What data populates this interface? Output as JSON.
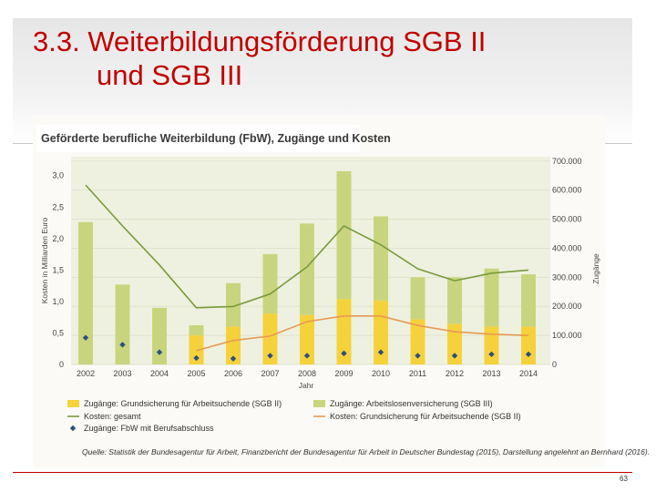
{
  "slide": {
    "title_line1": "3.3. Weiterbildungsförderung SGB II",
    "title_line2": "und SGB III",
    "page_number": "63"
  },
  "chart_data": {
    "type": "bar",
    "title": "Geförderte berufliche Weiterbildung (FbW), Zugänge und Kosten",
    "source": "Quelle: Statistik der Bundesagentur für Arbeit, Finanzbericht der Bundesagentur für Arbeit in Deutscher Bundestag (2015), Darstellung angelehnt an Bernhard (2016).",
    "xlabel": "Jahr",
    "ylabel_left": "Kosten in Milliarden Euro",
    "ylabel_right": "Zugänge",
    "categories": [
      "2002",
      "2003",
      "2004",
      "2005",
      "2006",
      "2007",
      "2008",
      "2009",
      "2010",
      "2011",
      "2012",
      "2013",
      "2014"
    ],
    "left_axis": {
      "ticks": [
        0,
        0.5,
        1.0,
        1.5,
        2.0,
        2.5,
        3.0
      ],
      "tick_labels": [
        "0",
        "0,5",
        "1,0",
        "1,5",
        "2,0",
        "2,5",
        "3,0"
      ],
      "range": [
        0,
        3.3
      ]
    },
    "right_axis": {
      "ticks": [
        0,
        100000,
        200000,
        300000,
        400000,
        500000,
        600000,
        700000
      ],
      "tick_labels": [
        "0",
        "100.000",
        "200.000",
        "300.000",
        "400.000",
        "500.000",
        "600.000",
        "700.000"
      ],
      "range": [
        0,
        715000
      ]
    },
    "series": [
      {
        "name": "Zugänge: Grundsicherung für Arbeitsuchende (SGB II)",
        "kind": "bar-stacked",
        "axis": "right",
        "color": "#f5d23c",
        "values": [
          0,
          0,
          0,
          100000,
          130000,
          175000,
          170000,
          225000,
          220000,
          155000,
          140000,
          130000,
          130000
        ]
      },
      {
        "name": "Zugänge: Arbeitslosenversicherung (SGB III)",
        "kind": "bar-stacked",
        "axis": "right",
        "color": "#c9d57e",
        "values": [
          490000,
          275000,
          195000,
          35000,
          150000,
          205000,
          315000,
          440000,
          290000,
          145000,
          160000,
          200000,
          180000
        ]
      },
      {
        "name": "Kosten: gesamt",
        "kind": "line",
        "axis": "left",
        "color": "#7b9a3a",
        "values": [
          2.85,
          2.2,
          1.58,
          0.9,
          0.92,
          1.12,
          1.55,
          2.2,
          1.9,
          1.52,
          1.33,
          1.45,
          1.5
        ]
      },
      {
        "name": "Kosten: Grundsicherung für Arbeitsuchende (SGB II)",
        "kind": "line",
        "axis": "left",
        "color": "#e79a54",
        "values": [
          null,
          null,
          null,
          0.22,
          0.38,
          0.45,
          0.68,
          0.77,
          0.77,
          0.62,
          0.52,
          0.48,
          0.46
        ]
      },
      {
        "name": "Zugänge: FbW mit Berufsabschluss",
        "kind": "point",
        "axis": "right",
        "color": "#2d4f7c",
        "values": [
          92000,
          68000,
          42000,
          22000,
          20000,
          30000,
          30000,
          38000,
          42000,
          30000,
          30000,
          35000,
          35000
        ]
      }
    ],
    "legend": {
      "placement": "bottom"
    }
  }
}
